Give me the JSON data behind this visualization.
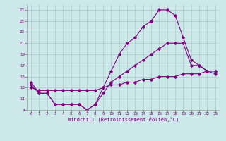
{
  "title": "",
  "xlabel": "Windchill (Refroidissement éolien,°C)",
  "background_color": "#cce8e8",
  "line_color": "#800080",
  "grid_color": "#aacccc",
  "xlim": [
    -0.5,
    23.5
  ],
  "ylim": [
    9,
    28
  ],
  "xticks": [
    0,
    1,
    2,
    3,
    4,
    5,
    6,
    7,
    8,
    9,
    10,
    11,
    12,
    13,
    14,
    15,
    16,
    17,
    18,
    19,
    20,
    21,
    22,
    23
  ],
  "yticks": [
    9,
    11,
    13,
    15,
    17,
    19,
    21,
    23,
    25,
    27
  ],
  "curve1_x": [
    0,
    1,
    2,
    3,
    4,
    5,
    6,
    7,
    8,
    9,
    10,
    11,
    12,
    13,
    14,
    15,
    16,
    17,
    18,
    19,
    20,
    21,
    22,
    23
  ],
  "curve1_y": [
    14,
    12,
    12,
    10,
    10,
    10,
    10,
    9,
    10,
    13,
    16,
    19,
    21,
    22,
    24,
    25,
    27,
    27,
    26,
    22,
    18,
    17,
    16,
    16
  ],
  "curve2_x": [
    0,
    1,
    2,
    3,
    4,
    5,
    6,
    7,
    8,
    9,
    10,
    11,
    12,
    13,
    14,
    15,
    16,
    17,
    18,
    19,
    20,
    21,
    22,
    23
  ],
  "curve2_y": [
    13.5,
    12,
    12,
    10,
    10,
    10,
    10,
    9,
    10,
    12,
    14,
    15,
    16,
    17,
    18,
    19,
    20,
    21,
    21,
    21,
    17,
    17,
    16,
    15.5
  ],
  "curve3_x": [
    0,
    1,
    2,
    3,
    4,
    5,
    6,
    7,
    8,
    9,
    10,
    11,
    12,
    13,
    14,
    15,
    16,
    17,
    18,
    19,
    20,
    21,
    22,
    23
  ],
  "curve3_y": [
    13,
    12.5,
    12.5,
    12.5,
    12.5,
    12.5,
    12.5,
    12.5,
    12.5,
    13,
    13.5,
    13.5,
    14,
    14,
    14.5,
    14.5,
    15,
    15,
    15,
    15.5,
    15.5,
    15.5,
    16,
    16
  ]
}
